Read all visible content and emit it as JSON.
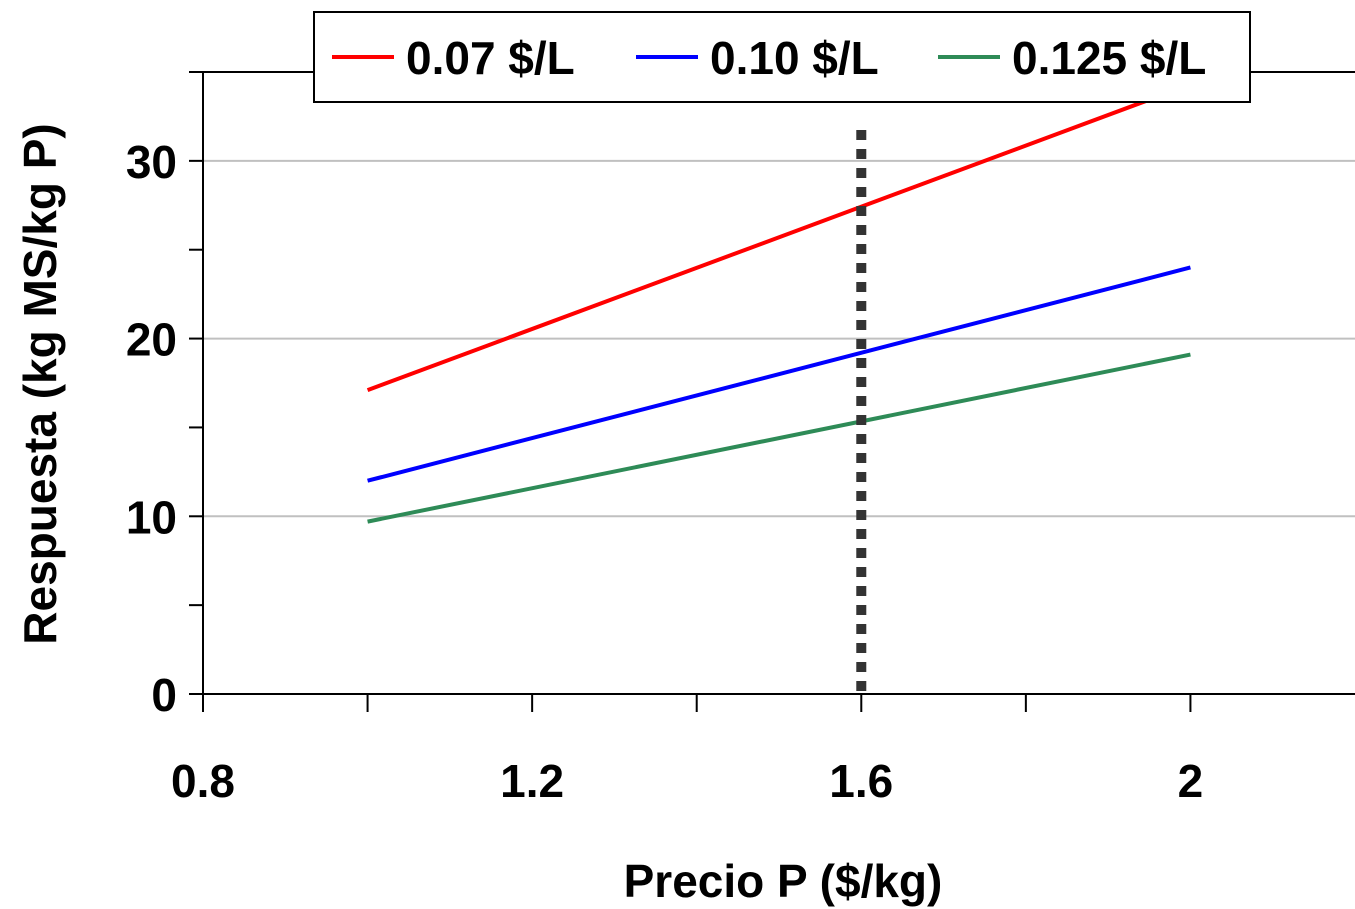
{
  "chart_data": {
    "type": "line",
    "title": "",
    "xlabel": "Precio P ($/kg)",
    "ylabel": "Respuesta (kg MS/kg P)",
    "xlim": [
      0.8,
      2.2
    ],
    "ylim": [
      0,
      35
    ],
    "x_ticks": [
      0.8,
      1.2,
      1.6,
      2
    ],
    "x_tick_labels": [
      "0.8",
      "1.2",
      "1.6",
      "2"
    ],
    "x_minor_ticks": [
      1.0,
      1.4,
      1.8
    ],
    "y_ticks": [
      0,
      10,
      20,
      30
    ],
    "y_tick_labels": [
      "0",
      "10",
      "20",
      "30"
    ],
    "y_minor_ticks": [
      5,
      15,
      25,
      35
    ],
    "grid": "horizontal major lines",
    "legend": "top",
    "series": [
      {
        "name": "0.07 $/L",
        "color": "#ff0000",
        "x": [
          1.0,
          2.0
        ],
        "values": [
          17.1,
          34.3
        ]
      },
      {
        "name": "0.10 $/L",
        "color": "#0000ff",
        "x": [
          1.0,
          2.0
        ],
        "values": [
          12.0,
          24.0
        ]
      },
      {
        "name": "0.125 $/L",
        "color": "#2e8b57",
        "x": [
          1.0,
          2.0
        ],
        "values": [
          9.7,
          19.1
        ]
      }
    ],
    "reference_line": {
      "orientation": "vertical",
      "x": 1.6,
      "style": "dotted",
      "color": "#333333"
    }
  }
}
